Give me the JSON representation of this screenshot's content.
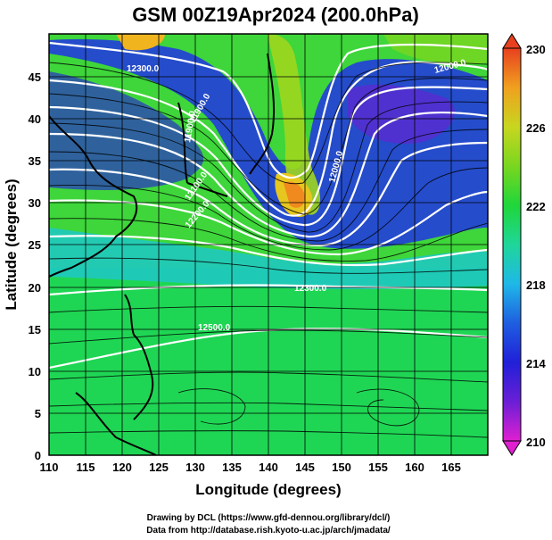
{
  "map": {
    "title": "GSM 00Z19Apr2024 (200.0hPa)",
    "xlabel": "Longitude (degrees)",
    "ylabel": "Latitude  (degrees)",
    "lon_range": [
      110,
      170
    ],
    "lat_range": [
      0,
      50
    ],
    "x_ticks": [
      "110",
      "115",
      "120",
      "125",
      "130",
      "135",
      "140",
      "145",
      "150",
      "155",
      "160",
      "165"
    ],
    "y_ticks": [
      "0",
      "5",
      "10",
      "15",
      "20",
      "25",
      "30",
      "35",
      "40",
      "45"
    ],
    "colorbar": {
      "ticks": [
        "230",
        "226",
        "222",
        "218",
        "214",
        "210"
      ],
      "range": [
        210,
        230
      ],
      "colors": [
        "#d11fbf",
        "#7a1fd1",
        "#2626d6",
        "#1e6ee0",
        "#1fb2e6",
        "#1fd6b8",
        "#1fd65a",
        "#5ad61f",
        "#9ed61f",
        "#e6c61f",
        "#f0941f",
        "#e84a1f"
      ]
    },
    "contour_labels": [
      {
        "text": "12300.0",
        "lon": 125,
        "lat": 47
      },
      {
        "text": "11900.0",
        "lon": 131,
        "lat": 43
      },
      {
        "text": "11900.0",
        "lon": 130,
        "lat": 39
      },
      {
        "text": "12100.0",
        "lon": 130,
        "lat": 35
      },
      {
        "text": "12200.0",
        "lon": 129,
        "lat": 31
      },
      {
        "text": "12000.0",
        "lon": 160,
        "lat": 37
      },
      {
        "text": "12000.0",
        "lon": 164,
        "lat": 47
      },
      {
        "text": "12300.0",
        "lon": 145,
        "lat": 21
      },
      {
        "text": "12500.0",
        "lon": 131,
        "lat": 16
      }
    ],
    "credits": {
      "line1": "Drawing by DCL (https://www.gfd-dennou.org/library/dcl/)",
      "line2": "Data from http://database.rish.kyoto-u.ac.jp/arch/jmadata/"
    }
  }
}
